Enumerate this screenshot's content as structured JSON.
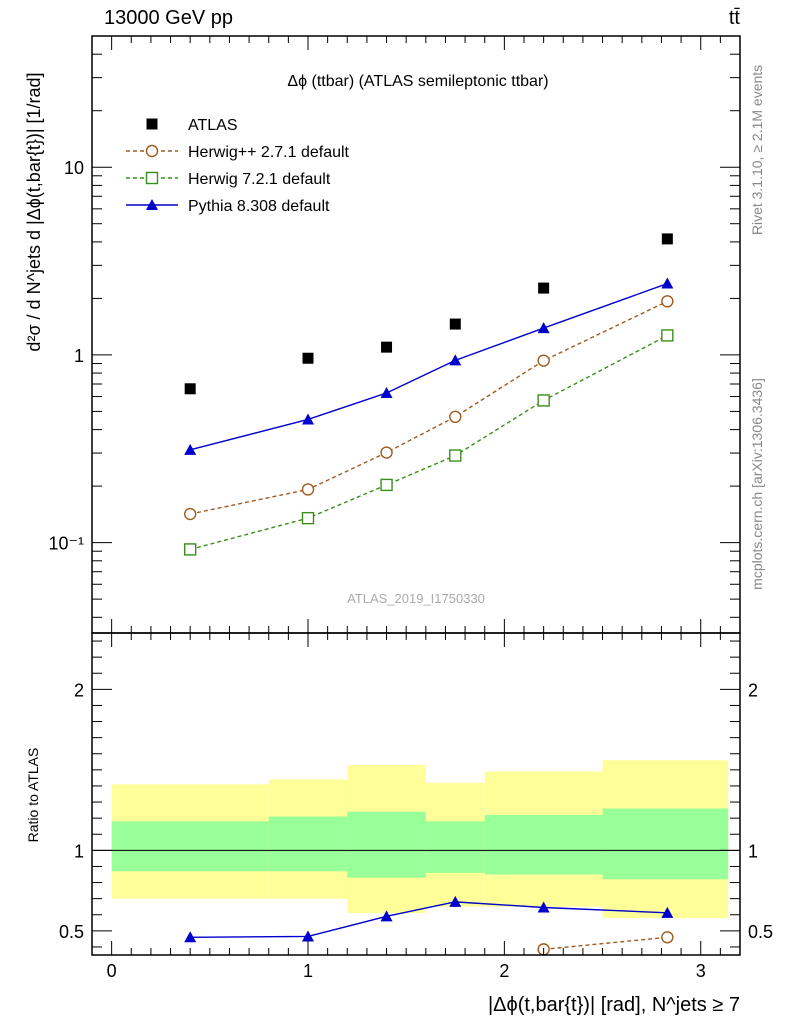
{
  "header": {
    "energy": "13000 GeV pp",
    "process": "tt̄"
  },
  "side_labels": {
    "rivet": "Rivet 3.1.10, ≥ 2.1M events",
    "mcplots": "mcplots.cern.ch [arXiv:1306.3436]"
  },
  "watermark": "ATLAS_2019_I1750330",
  "chart_data": [
    {
      "type": "scatter",
      "title": "Δϕ (ttbar) (ATLAS semileptonic ttbar)",
      "ylabel": "d²σ / d N^jets d |Δϕ(t,bar{t})| [1/rad]",
      "y_scale": "log",
      "xlim": [
        -0.1,
        3.2
      ],
      "ylim": [
        0.033,
        50
      ],
      "y_ticks": [
        "10⁻¹",
        "1",
        "10"
      ],
      "legend_position": "top-left",
      "x": [
        0.4,
        1.0,
        1.4,
        1.75,
        2.2,
        2.83
      ],
      "series": [
        {
          "name": "ATLAS",
          "marker": "filled-square",
          "color": "#000000",
          "values": [
            0.66,
            0.96,
            1.1,
            1.46,
            2.27,
            4.15
          ]
        },
        {
          "name": "Herwig++ 2.7.1 default",
          "marker": "open-circle",
          "line": "dashed",
          "color": "#a05a1e",
          "values": [
            0.142,
            0.192,
            0.302,
            0.468,
            0.932,
            1.93
          ]
        },
        {
          "name": "Herwig 7.2.1 default",
          "marker": "open-square",
          "line": "dashed",
          "color": "#3a8f1a",
          "values": [
            0.092,
            0.135,
            0.203,
            0.291,
            0.572,
            1.27
          ]
        },
        {
          "name": "Pythia 8.308 default",
          "marker": "filled-triangle",
          "line": "solid",
          "color": "#0000cc",
          "values": [
            0.312,
            0.453,
            0.627,
            0.935,
            1.39,
            2.4
          ]
        }
      ]
    },
    {
      "type": "scatter",
      "ylabel": "Ratio to ATLAS",
      "xlabel": "|Δϕ(t,bar{t})| [rad], N^jets ≥ 7",
      "xlim": [
        -0.1,
        3.2
      ],
      "ylim": [
        0.35,
        2.35
      ],
      "x_ticks": [
        "0",
        "1",
        "2",
        "3"
      ],
      "y_ticks": [
        "0.5",
        "1",
        "2"
      ],
      "band_bin_edges": [
        0.0,
        0.8,
        1.2,
        1.6,
        1.9,
        2.5,
        3.14
      ],
      "band_yellow": {
        "color": "#ffff99",
        "low": [
          0.7,
          0.7,
          0.61,
          0.65,
          0.65,
          0.58
        ],
        "high": [
          1.41,
          1.44,
          1.53,
          1.42,
          1.49,
          1.56
        ]
      },
      "band_green": {
        "color": "#99ff99",
        "low": [
          0.87,
          0.87,
          0.83,
          0.86,
          0.85,
          0.82
        ],
        "high": [
          1.18,
          1.21,
          1.24,
          1.18,
          1.22,
          1.26
        ]
      },
      "series": [
        {
          "name": "Pythia 8.308 default",
          "color": "#0000cc",
          "x": [
            0.4,
            1.0,
            1.4,
            1.75,
            2.2,
            2.83
          ],
          "values": [
            0.46,
            0.465,
            0.59,
            0.68,
            0.645,
            0.612
          ],
          "errors": [
            0.022,
            0.022,
            0.018,
            0.018,
            0.012,
            0.01
          ]
        },
        {
          "name": "Herwig++ 2.7.1 default",
          "color": "#a05a1e",
          "x": [
            2.2,
            2.83
          ],
          "values": [
            0.385,
            0.46
          ]
        }
      ]
    }
  ]
}
